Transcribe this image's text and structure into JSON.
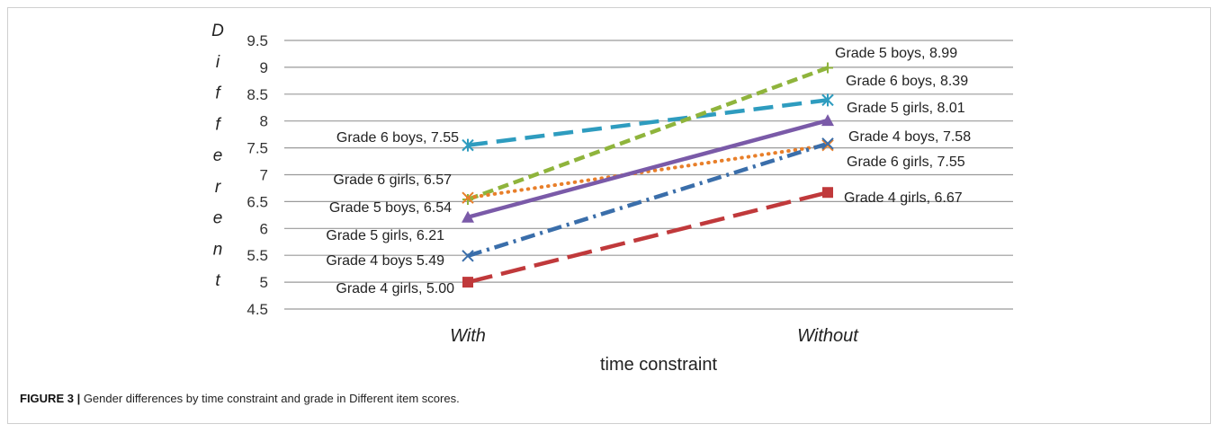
{
  "figure": {
    "caption_label": "FIGURE 3 |",
    "caption_text": " Gender differences by time constraint and grade in Different item scores."
  },
  "chart_data": {
    "type": "line",
    "categories": [
      "With",
      "Without"
    ],
    "xlabel": "time constraint",
    "ylabel": "Different",
    "ylabel_letters": [
      "D",
      "i",
      "f",
      "f",
      "e",
      "r",
      "e",
      "n",
      "t"
    ],
    "ylim": [
      4.5,
      9.5
    ],
    "yticks": [
      4.5,
      5,
      5.5,
      6,
      6.5,
      7,
      7.5,
      8,
      8.5,
      9,
      9.5
    ],
    "ytick_labels": [
      "4.5",
      "5",
      "5.5",
      "6",
      "6.5",
      "7",
      "7.5",
      "8",
      "8.5",
      "9",
      "9.5"
    ],
    "grid": true,
    "series": [
      {
        "name": "Grade 6 boys",
        "values": [
          7.55,
          8.39
        ],
        "labels": [
          "Grade 6 boys, 7.55",
          "Grade 6 boys, 8.39"
        ],
        "color": "#2e9cbf",
        "dash": "22,10",
        "marker": "asterisk"
      },
      {
        "name": "Grade 5 boys",
        "values": [
          6.54,
          8.99
        ],
        "labels": [
          "Grade 5 boys, 6.54",
          "Grade 5 boys, 8.99"
        ],
        "color": "#8fb43c",
        "dash": "12,6",
        "marker": "plus"
      },
      {
        "name": "Grade 6 girls",
        "values": [
          6.57,
          7.55
        ],
        "labels": [
          "Grade 6 girls, 6.57",
          "Grade 6 girls, 7.55"
        ],
        "color": "#e87f2a",
        "dash": "3,5",
        "marker": "star"
      },
      {
        "name": "Grade 5 girls",
        "values": [
          6.21,
          8.01
        ],
        "labels": [
          "Grade 5 girls, 6.21",
          "Grade 5 girls, 8.01"
        ],
        "color": "#7a5aa8",
        "dash": "",
        "marker": "triangle"
      },
      {
        "name": "Grade 4 boys",
        "values": [
          5.49,
          7.58
        ],
        "labels": [
          "Grade 4 boys 5.49",
          "Grade 4 boys, 7.58"
        ],
        "color": "#3a6eaa",
        "dash": "16,6,3,6",
        "marker": "star"
      },
      {
        "name": "Grade 4 girls",
        "values": [
          5.0,
          6.67
        ],
        "labels": [
          "Grade 4 girls, 5.00",
          "Grade 4 girls, 6.67"
        ],
        "color": "#c0393b",
        "dash": "28,10",
        "marker": "square"
      }
    ],
    "label_offsets": {
      "left": {
        "Grade 6 boys": 7.55,
        "Grade 5 boys": 6.54,
        "Grade 6 girls": 6.57,
        "Grade 5 girls": 6.21,
        "Grade 4 boys": 5.49,
        "Grade 4 girls": 5.0
      },
      "right": {
        "Grade 6 boys": 8.39,
        "Grade 5 boys": 8.99,
        "Grade 6 girls": 7.55,
        "Grade 5 girls": 8.01,
        "Grade 4 boys": 7.58,
        "Grade 4 girls": 6.67
      }
    }
  }
}
